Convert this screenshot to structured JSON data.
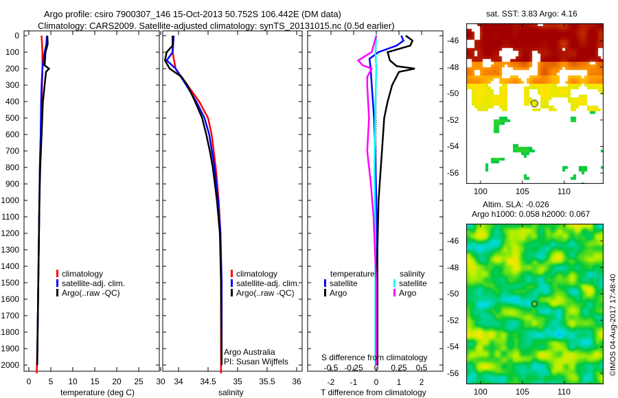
{
  "title_line1": "Argo profile: csiro 7900307_146 15-Oct-2013 50.752S 106.442E (DM data)",
  "title_line2": "Climatology: CARS2009. Satellite-adjusted climatology: synTS_20131015.nc (0.5d earlier)",
  "credit": "©IMOS 04-Aug-2017 17:48:40",
  "colors": {
    "climatology": "#ff0000",
    "satellite": "#0000ff",
    "argo": "#000000",
    "sal_satellite": "#00ffff",
    "sal_argo": "#ff00ff"
  },
  "chart_data": [
    {
      "type": "line",
      "name": "temperature",
      "xlabel": "temperature (deg C)",
      "ylabel": "depth",
      "xlim": [
        -1,
        31
      ],
      "ylim": [
        2050,
        0
      ],
      "xticks": [
        "0",
        "5",
        "10",
        "15",
        "20",
        "25",
        "30"
      ],
      "xtick_values": [
        0,
        5,
        10,
        15,
        20,
        25,
        30
      ],
      "yticks": [
        "0",
        "100",
        "200",
        "300",
        "400",
        "500",
        "600",
        "700",
        "800",
        "900",
        "1000",
        "1100",
        "1200",
        "1300",
        "1400",
        "1500",
        "1600",
        "1700",
        "1800",
        "1900",
        "2000"
      ],
      "legend": [
        "climatology",
        "satellite-adj. clim.",
        "Argo(..raw -QC)"
      ],
      "series": [
        {
          "name": "climatology",
          "color": "#ff0000",
          "depth": [
            0,
            50,
            100,
            200,
            300,
            400,
            600,
            800,
            1000,
            1400,
            1800,
            2050
          ],
          "values": [
            2.9,
            3.0,
            3.1,
            3.1,
            3.0,
            2.9,
            2.7,
            2.5,
            2.4,
            2.2,
            2.0,
            1.8
          ]
        },
        {
          "name": "satellite-adj. clim.",
          "color": "#0000ff",
          "depth": [
            0,
            50,
            100,
            200,
            300,
            400,
            600,
            800,
            1000,
            1400,
            1800,
            2000
          ],
          "values": [
            4.1,
            4.0,
            3.6,
            3.1,
            2.9,
            2.8,
            2.7,
            2.5,
            2.4,
            2.2,
            2.0,
            1.9
          ]
        },
        {
          "name": "Argo(..raw -QC)",
          "color": "#000000",
          "depth": [
            0,
            50,
            100,
            180,
            200,
            220,
            300,
            400,
            600,
            800,
            1000,
            1400,
            1800,
            2000
          ],
          "values": [
            4.2,
            4.3,
            3.8,
            3.6,
            4.6,
            3.9,
            3.6,
            3.2,
            2.9,
            2.6,
            2.4,
            2.2,
            2.0,
            1.9
          ]
        }
      ]
    },
    {
      "type": "line",
      "name": "salinity",
      "xlabel": "salinity",
      "xlim": [
        33.7,
        36.1
      ],
      "ylim": [
        2050,
        0
      ],
      "xticks": [
        "34",
        "34.5",
        "35",
        "35.5",
        "36"
      ],
      "xtick_values": [
        34,
        34.5,
        35,
        35.5,
        36
      ],
      "legend": [
        "climatology",
        "satellite-adj. clim.",
        "Argo(..raw -QC)"
      ],
      "annotation": [
        "Argo Australia",
        "PI: Susan Wijffels"
      ],
      "series": [
        {
          "name": "climatology",
          "color": "#ff0000",
          "depth": [
            0,
            100,
            200,
            300,
            400,
            500,
            600,
            800,
            1000,
            1200,
            1500,
            2050
          ],
          "values": [
            33.9,
            33.9,
            33.95,
            34.15,
            34.35,
            34.5,
            34.56,
            34.63,
            34.68,
            34.71,
            34.72,
            34.72
          ]
        },
        {
          "name": "satellite-adj. clim.",
          "color": "#0000ff",
          "depth": [
            0,
            100,
            150,
            200,
            300,
            400,
            500,
            600,
            800,
            1000,
            1200,
            1500,
            2000
          ],
          "values": [
            33.92,
            33.9,
            33.8,
            33.95,
            34.13,
            34.3,
            34.44,
            34.52,
            34.61,
            34.67,
            34.71,
            34.73,
            34.73
          ]
        },
        {
          "name": "Argo(..raw -QC)",
          "color": "#000000",
          "depth": [
            0,
            60,
            100,
            150,
            200,
            250,
            300,
            400,
            500,
            600,
            700,
            800,
            1000,
            1200,
            1500,
            2000
          ],
          "values": [
            33.9,
            33.9,
            33.8,
            33.77,
            33.85,
            34.05,
            34.15,
            34.28,
            34.4,
            34.47,
            34.53,
            34.58,
            34.65,
            34.7,
            34.72,
            34.73
          ]
        }
      ]
    },
    {
      "type": "line",
      "name": "difference",
      "xlabel": "T difference from climatology",
      "x2label": "S difference from climatology",
      "xlim": [
        -3,
        3
      ],
      "ylim": [
        2050,
        0
      ],
      "xticks": [
        "-2",
        "-1",
        "0",
        "1",
        "2"
      ],
      "xtick_values": [
        -2,
        -1,
        0,
        1,
        2
      ],
      "x2ticks": [
        "-0.5",
        "-0.25",
        "0",
        "0.25",
        "0.5"
      ],
      "x2tick_values": [
        -0.5,
        -0.25,
        0,
        0.25,
        0.5
      ],
      "legend": {
        "temperature_title": "temperature",
        "salinity_title": "salinity",
        "items": [
          "satellite",
          "Argo",
          "satellite",
          "Argo"
        ]
      },
      "series": [
        {
          "name": "T satellite",
          "color": "#0000ff",
          "axis": "T",
          "depth": [
            0,
            30,
            60,
            100,
            140,
            200,
            300,
            500,
            700,
            1000,
            1500,
            2000
          ],
          "values": [
            1.1,
            1.2,
            0.9,
            0.1,
            -0.3,
            -0.25,
            -0.2,
            -0.1,
            -0.05,
            0.0,
            0.05,
            0.05
          ]
        },
        {
          "name": "T Argo",
          "color": "#000000",
          "axis": "T",
          "depth": [
            0,
            30,
            60,
            100,
            150,
            185,
            200,
            220,
            300,
            400,
            500,
            600,
            800,
            1000,
            1300,
            1600,
            2000
          ],
          "values": [
            1.3,
            1.6,
            1.5,
            0.5,
            0.6,
            0.9,
            1.7,
            1.0,
            0.7,
            0.5,
            0.35,
            0.3,
            0.2,
            0.1,
            0.05,
            0.05,
            0.05
          ]
        },
        {
          "name": "S satellite",
          "color": "#00ffff",
          "axis": "S",
          "depth": [
            0,
            100,
            200,
            400,
            800,
            1200,
            1600,
            2000
          ],
          "values": [
            0.0,
            -0.01,
            0.0,
            -0.01,
            -0.02,
            -0.01,
            -0.01,
            -0.01
          ]
        },
        {
          "name": "S Argo",
          "color": "#ff00ff",
          "axis": "S",
          "depth": [
            0,
            100,
            150,
            180,
            200,
            250,
            300,
            500,
            700,
            900,
            1100,
            1500,
            2000
          ],
          "values": [
            0.0,
            -0.05,
            -0.2,
            -0.15,
            -0.05,
            -0.1,
            -0.1,
            -0.08,
            -0.1,
            -0.06,
            -0.03,
            0.0,
            0.0
          ]
        }
      ]
    },
    {
      "type": "heatmap",
      "name": "sst-map",
      "title": "sat. SST: 3.83 Argo: 4.16",
      "xticks": [
        "100",
        "105",
        "110"
      ],
      "xtick_values": [
        100,
        105,
        110
      ],
      "yticks": [
        "-46",
        "-48",
        "-50",
        "-52",
        "-54",
        "-56"
      ],
      "ytick_values": [
        -46,
        -48,
        -50,
        -52,
        -54,
        -56
      ],
      "xlim": [
        98.3,
        114.5
      ],
      "ylim": [
        -56.8,
        -44.7
      ],
      "marker": {
        "lon": 106.442,
        "lat": -50.752
      }
    },
    {
      "type": "heatmap",
      "name": "sla-map",
      "title1": "Altim. SLA: -0.026",
      "title2": "Argo h1000: 0.058 h2000: 0.067",
      "xticks": [
        "100",
        "105",
        "110"
      ],
      "xtick_values": [
        100,
        105,
        110
      ],
      "yticks": [
        "-46",
        "-48",
        "-50",
        "-52",
        "-54",
        "-56"
      ],
      "ytick_values": [
        -46,
        -48,
        -50,
        -52,
        -54,
        -56
      ],
      "xlim": [
        98.3,
        114.5
      ],
      "ylim": [
        -56.8,
        -44.7
      ],
      "marker": {
        "lon": 106.442,
        "lat": -50.752
      }
    }
  ]
}
